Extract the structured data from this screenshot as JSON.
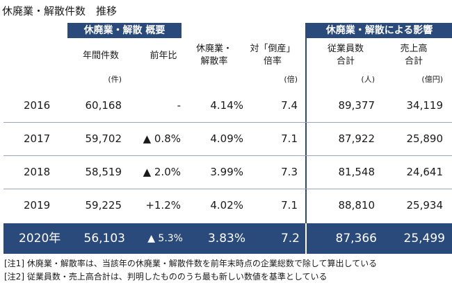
{
  "title": "休廃業・解散件数　推移",
  "bands": {
    "left": "休廃業・解散 概要",
    "right": "休廃業・解散による影響"
  },
  "headers": {
    "count": "年間件数",
    "yoy": "前年比",
    "rate": [
      "休廃業・",
      "解散率"
    ],
    "ratio": [
      "対「倒産」",
      "倍率"
    ],
    "employees": [
      "従業員数",
      "合計"
    ],
    "sales": [
      "売上高",
      "合計"
    ]
  },
  "units": {
    "count": "(件)",
    "ratio": "(倍)",
    "employees": "(人)",
    "sales": "(億円)"
  },
  "rows": [
    {
      "year": "2016",
      "count": "60,168",
      "yoy": "-",
      "rate": "4.14%",
      "ratio": "7.4",
      "employees": "89,377",
      "sales": "34,119"
    },
    {
      "year": "2017",
      "count": "59,702",
      "yoy": "▲ 0.8%",
      "rate": "4.09%",
      "ratio": "7.1",
      "employees": "87,922",
      "sales": "25,890"
    },
    {
      "year": "2018",
      "count": "58,519",
      "yoy": "▲ 2.0%",
      "rate": "3.99%",
      "ratio": "7.3",
      "employees": "81,548",
      "sales": "24,641"
    },
    {
      "year": "2019",
      "count": "59,225",
      "yoy": "+1.2%",
      "rate": "4.02%",
      "ratio": "7.1",
      "employees": "88,810",
      "sales": "25,934"
    }
  ],
  "highlight": {
    "year": "2020年",
    "count": "56,103",
    "yoy": "▲ 5.3%",
    "rate": "3.83%",
    "ratio": "7.2",
    "employees": "87,366",
    "sales": "25,499"
  },
  "notes": [
    "[注1] 休廃業・解散率は、当該年の休廃業・解散件数を前年末時点の企業総数で除して算出している",
    "[注2] 従業員数・売上高合計は、判明したもののうち最も新しい数値を基準としている"
  ],
  "colors": {
    "navy": "#2a4a7c"
  }
}
